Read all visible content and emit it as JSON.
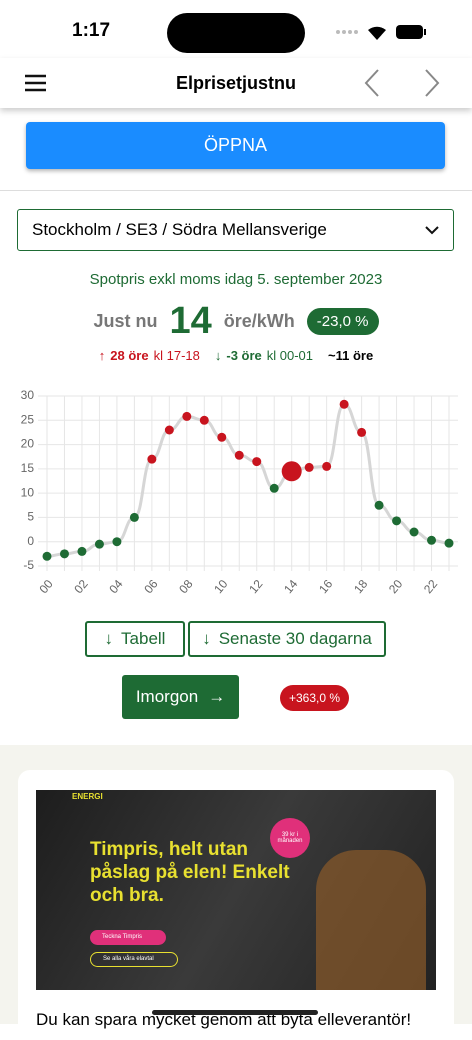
{
  "status": {
    "time": "1:17"
  },
  "nav": {
    "title": "Elprisetjustnu"
  },
  "open_button": "ÖPPNA",
  "region": "Stockholm / SE3 / Södra Mellansverige",
  "summary": {
    "heading": "Spotpris exkl moms idag 5. september 2023",
    "now_label": "Just nu",
    "now_value": "14",
    "unit": "öre/kWh",
    "change": "-23,0 %",
    "high": "28 öre",
    "high_time": "kl 17-18",
    "low": "-3 öre",
    "low_time": "kl 00-01",
    "avg": "~11 öre"
  },
  "buttons": {
    "table": "Tabell",
    "last30": "Senaste 30 dagarna",
    "tomorrow": "Imorgon",
    "tomorrow_change": "+363,0 %"
  },
  "ad": {
    "brand": "ENERGI",
    "headline": "Timpris, helt utan påslag på elen! Enkelt och bra.",
    "badge": "39 kr i månaden",
    "cta": "Teckna Timpris",
    "link": "Se alla våra elavtal"
  },
  "article": {
    "title": "Du kan spara mycket genom att byta elleverantör!"
  },
  "chart_data": {
    "type": "line",
    "categories": [
      "00",
      null,
      "02",
      null,
      "04",
      null,
      "06",
      null,
      "08",
      null,
      "10",
      null,
      "12",
      null,
      "14",
      null,
      "16",
      null,
      "18",
      null,
      "20",
      null,
      "22",
      null
    ],
    "values": [
      -3,
      -2.5,
      -2,
      -0.5,
      0,
      5,
      17,
      23,
      25.8,
      25,
      21.5,
      17.8,
      16.5,
      11,
      14.5,
      15.3,
      15.5,
      28.3,
      22.5,
      7.5,
      4.3,
      2,
      0.3,
      -0.3
    ],
    "point_colors": [
      "#1e6b34",
      "#1e6b34",
      "#1e6b34",
      "#1e6b34",
      "#1e6b34",
      "#1e6b34",
      "#c8141e",
      "#c8141e",
      "#c8141e",
      "#c8141e",
      "#c8141e",
      "#c8141e",
      "#c8141e",
      "#1e6b34",
      "#c8141e",
      "#c8141e",
      "#c8141e",
      "#c8141e",
      "#c8141e",
      "#1e6b34",
      "#1e6b34",
      "#1e6b34",
      "#1e6b34",
      "#1e6b34"
    ],
    "color": "#d6d6d6",
    "highlight_category": "14",
    "ylim": [
      -5,
      30
    ],
    "yticks": [
      -5,
      0,
      5,
      10,
      15,
      20,
      25,
      30
    ],
    "grid": true
  }
}
